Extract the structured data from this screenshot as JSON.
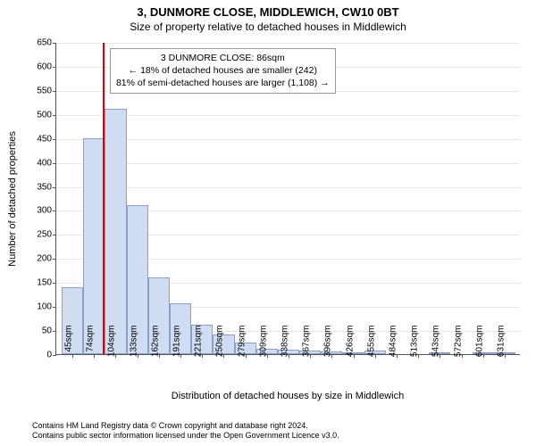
{
  "title": "3, DUNMORE CLOSE, MIDDLEWICH, CW10 0BT",
  "subtitle": "Size of property relative to detached houses in Middlewich",
  "ylabel": "Number of detached properties",
  "xlabel": "Distribution of detached houses by size in Middlewich",
  "footer_line1": "Contains HM Land Registry data © Crown copyright and database right 2024.",
  "footer_line2": "Contains public sector information licensed under the Open Government Licence v3.0.",
  "chart": {
    "type": "histogram",
    "ylim": [
      0,
      650
    ],
    "ytick_step": 50,
    "bar_fill": "#cfdcf2",
    "bar_border": "#8aa0c8",
    "grid_color": "#e8e8e8",
    "background_color": "#ffffff",
    "ref_line_color": "#d00",
    "ref_value": 86,
    "xticks": [
      45,
      74,
      104,
      133,
      162,
      191,
      221,
      250,
      279,
      309,
      338,
      367,
      396,
      426,
      455,
      484,
      513,
      543,
      572,
      601,
      631
    ],
    "xtick_suffix": "sqm",
    "values": [
      140,
      450,
      510,
      310,
      160,
      105,
      62,
      40,
      25,
      11,
      10,
      7,
      5,
      4,
      7,
      0,
      0,
      2,
      0,
      2,
      2
    ]
  },
  "callout": {
    "line1": "3 DUNMORE CLOSE: 86sqm",
    "line2": "← 18% of detached houses are smaller (242)",
    "line3": "81% of semi-detached houses are larger (1,108) →"
  },
  "fonts": {
    "title_size": 13,
    "subtitle_size": 12,
    "axis_label_size": 11,
    "tick_size": 10,
    "callout_size": 10.5,
    "footer_size": 9
  }
}
